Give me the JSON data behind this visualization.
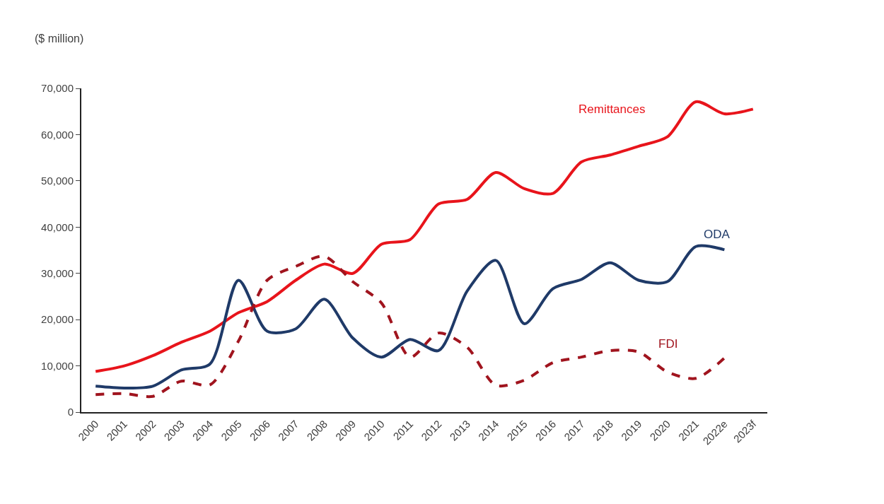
{
  "chart_data": {
    "type": "line",
    "ylabel": "($ million)",
    "categories": [
      "2000",
      "2001",
      "2002",
      "2003",
      "2004",
      "2005",
      "2006",
      "2007",
      "2008",
      "2009",
      "2010",
      "2011",
      "2012",
      "2013",
      "2014",
      "2015",
      "2016",
      "2017",
      "2018",
      "2019",
      "2020",
      "2021",
      "2022e",
      "2023f"
    ],
    "series": [
      {
        "name": "Remittances",
        "color": "#e8141b",
        "line_style": "solid",
        "values": [
          8800,
          10000,
          12200,
          15100,
          17500,
          21500,
          23900,
          28500,
          32000,
          30000,
          36300,
          37300,
          45000,
          46000,
          51800,
          48300,
          47300,
          54100,
          55600,
          57500,
          59500,
          67100,
          64500,
          65500
        ]
      },
      {
        "name": "ODA",
        "color": "#1f3a68",
        "line_style": "solid",
        "values": [
          5600,
          5200,
          5600,
          9100,
          10400,
          28500,
          17500,
          18000,
          24400,
          16000,
          11900,
          15700,
          13300,
          26200,
          32800,
          19100,
          26700,
          28700,
          32300,
          28500,
          28200,
          35800,
          35100,
          null
        ]
      },
      {
        "name": "FDI",
        "color": "#a0141e",
        "line_style": "dashed",
        "values": [
          3800,
          4000,
          3400,
          6700,
          5900,
          15400,
          28500,
          31500,
          33700,
          28200,
          23600,
          11900,
          17100,
          14000,
          5800,
          6900,
          10700,
          11900,
          13300,
          13000,
          8700,
          7300,
          11700,
          null
        ]
      }
    ],
    "ylim": [
      0,
      70000
    ],
    "yticks": [
      0,
      {
        "value": 10000,
        "label": "10,000"
      },
      {
        "value": 20000,
        "label": "20,000"
      },
      {
        "value": 30000,
        "label": "30,000"
      },
      {
        "value": 40000,
        "label": "40,000"
      },
      {
        "value": 50000,
        "label": "50,000"
      },
      {
        "value": 60000,
        "label": "60,000"
      },
      {
        "value": 70000,
        "label": "70,000"
      }
    ],
    "grid": false,
    "legend": false,
    "marker": "none"
  }
}
